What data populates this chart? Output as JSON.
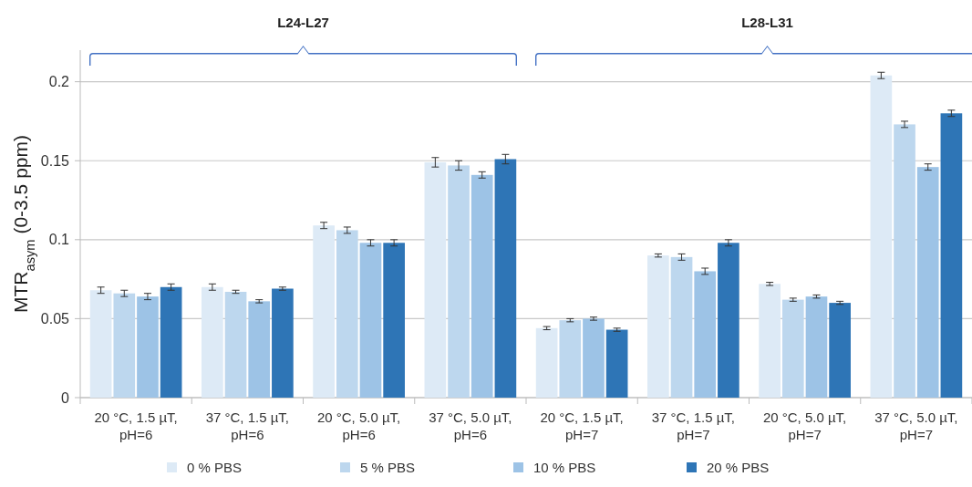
{
  "chart_data": {
    "type": "bar",
    "ylabel": "MTR$_{asym}$ (0-3.5 ppm)",
    "categories": [
      "20 °C, 1.5 µT, pH=6",
      "37 °C, 1.5 µT, pH=6",
      "20 °C, 5.0 µT, pH=6",
      "37 °C, 5.0 µT, pH=6",
      "20 °C, 1.5 µT, pH=7",
      "37 °C, 1.5 µT, pH=7",
      "20 °C, 5.0 µT, pH=7",
      "37 °C, 5.0 µT, pH=7"
    ],
    "series": [
      {
        "name": "0 % PBS",
        "color": "#ddeaf6",
        "values": [
          0.068,
          0.07,
          0.109,
          0.149,
          0.044,
          0.09,
          0.072,
          0.204
        ],
        "errors": [
          0.002,
          0.002,
          0.002,
          0.003,
          0.001,
          0.001,
          0.001,
          0.002
        ]
      },
      {
        "name": "5 % PBS",
        "color": "#bdd7ee",
        "values": [
          0.066,
          0.067,
          0.106,
          0.147,
          0.049,
          0.089,
          0.062,
          0.173
        ],
        "errors": [
          0.002,
          0.001,
          0.002,
          0.003,
          0.001,
          0.002,
          0.001,
          0.002
        ]
      },
      {
        "name": "10 % PBS",
        "color": "#9dc3e6",
        "values": [
          0.064,
          0.061,
          0.098,
          0.141,
          0.05,
          0.08,
          0.064,
          0.146
        ],
        "errors": [
          0.002,
          0.001,
          0.002,
          0.002,
          0.001,
          0.002,
          0.001,
          0.002
        ]
      },
      {
        "name": "20 % PBS",
        "color": "#2e75b6",
        "values": [
          0.07,
          0.069,
          0.098,
          0.151,
          0.043,
          0.098,
          0.06,
          0.18
        ],
        "errors": [
          0.002,
          0.001,
          0.002,
          0.003,
          0.001,
          0.002,
          0.001,
          0.002
        ]
      }
    ],
    "ylim": [
      0,
      0.22
    ],
    "yticks": [
      0,
      0.05,
      0.1,
      0.15,
      0.2
    ],
    "grid": "y",
    "legend": "bottom",
    "annotations": [
      "L24-L27",
      "L28-L31"
    ]
  }
}
